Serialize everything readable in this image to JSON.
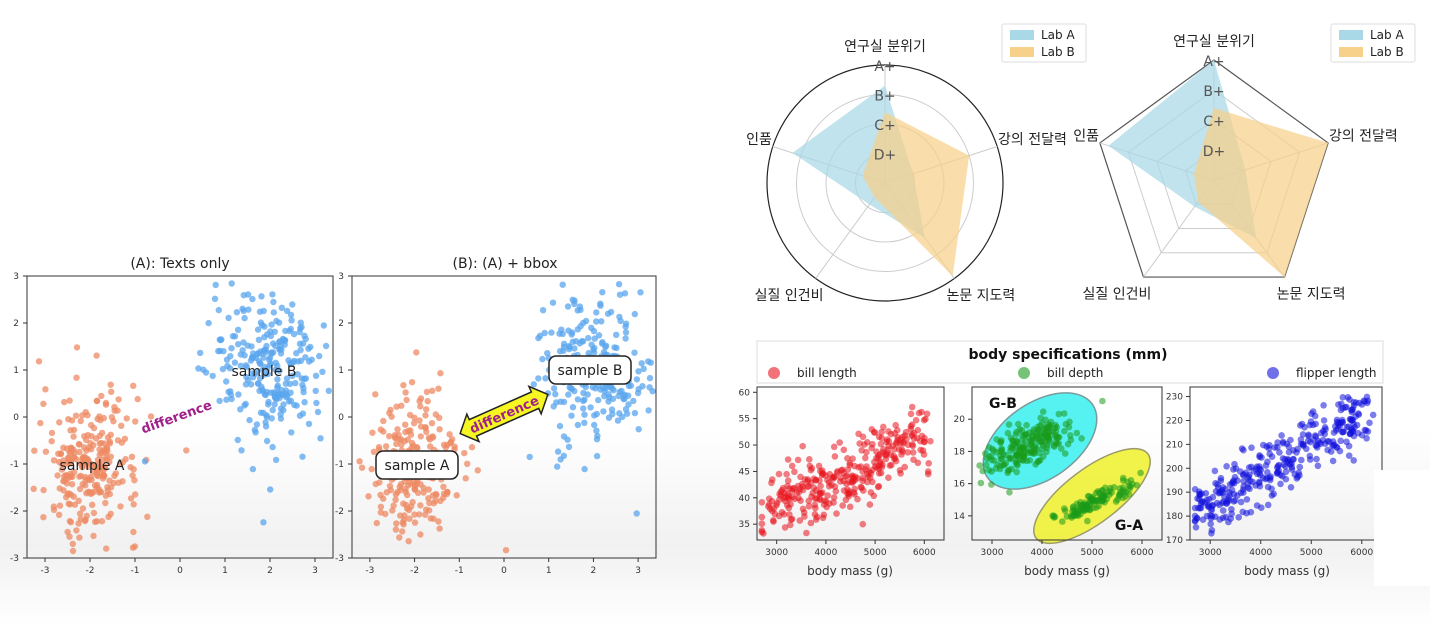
{
  "colors": {
    "sample_a": "#ee8a63",
    "sample_b": "#5aa6ee",
    "lab_a": "#a9d8e6",
    "lab_b": "#f7d08a",
    "bill_length": "#e8141e",
    "bill_depth": "#1a9a1a",
    "flipper_length": "#1010dd",
    "cyan_region": "#38f0f0",
    "yellow_region": "#eef02a",
    "arrow_fill": "#f6f622",
    "difference_text": "#a0208a"
  },
  "chart_data": [
    {
      "type": "scatter",
      "title": "(A): Texts only",
      "xlim": [
        -3.4,
        3.4
      ],
      "ylim": [
        -3,
        3
      ],
      "xticks": [
        "-3",
        "-2",
        "-1",
        "0",
        "1",
        "2",
        "3"
      ],
      "yticks": [
        "3",
        "2",
        "1",
        "0",
        "-1",
        "-2",
        "-3"
      ],
      "series": [
        {
          "name": "",
          "cluster": {
            "center": [
              -2,
              -1
            ],
            "spread": [
              0.55,
              0.75
            ],
            "count": 260
          }
        },
        {
          "name": "",
          "cluster": {
            "center": [
              2,
              1
            ],
            "spread": [
              0.65,
              0.8
            ],
            "count": 260
          }
        }
      ],
      "annotations": [
        "sample A",
        "sample B",
        "difference"
      ]
    },
    {
      "type": "scatter",
      "title": "(B): (A) + bbox",
      "xlim": [
        -3.4,
        3.4
      ],
      "ylim": [
        -3,
        3
      ],
      "xticks": [
        "-3",
        "-2",
        "-1",
        "0",
        "1",
        "2",
        "3"
      ],
      "yticks": [
        "3",
        "2",
        "1",
        "0",
        "-1",
        "-2",
        "-3"
      ],
      "series": [
        {
          "name": "",
          "cluster": {
            "center": [
              -2,
              -1
            ],
            "spread": [
              0.55,
              0.75
            ],
            "count": 260
          }
        },
        {
          "name": "",
          "cluster": {
            "center": [
              2,
              1
            ],
            "spread": [
              0.65,
              0.8
            ],
            "count": 260
          }
        }
      ],
      "annotations": [
        "sample A",
        "sample B",
        "difference"
      ]
    },
    {
      "type": "radar",
      "shape": "circle",
      "categories": [
        "연구실 분위기",
        "강의 전달력",
        "논문 지도력",
        "실질 인건비",
        "인품"
      ],
      "rlabels": [
        "A+",
        "B+",
        "C+",
        "D+"
      ],
      "levels": {
        "D+": 1,
        "C+": 2,
        "B+": 3,
        "A+": 4
      },
      "rmax": 4,
      "series": [
        {
          "name": "Lab A",
          "values": [
            3.3,
            1.0,
            2.3,
            0.9,
            3.3
          ]
        },
        {
          "name": "Lab B",
          "values": [
            2.4,
            3.0,
            3.9,
            0.6,
            0.8
          ]
        }
      ],
      "legend": "top-right"
    },
    {
      "type": "radar",
      "shape": "polygon",
      "categories": [
        "연구실 분위기",
        "강의 전달력",
        "논문 지도력",
        "실질 인건비",
        "인품"
      ],
      "rlabels": [
        "A+",
        "B+",
        "C+",
        "D+"
      ],
      "levels": {
        "D+": 1,
        "C+": 2,
        "B+": 3,
        "A+": 4
      },
      "rmax": 4,
      "series": [
        {
          "name": "Lab A",
          "values": [
            4.0,
            1.1,
            2.4,
            1.1,
            3.7
          ]
        },
        {
          "name": "Lab B",
          "values": [
            2.4,
            4.0,
            4.0,
            0.9,
            0.7
          ]
        }
      ],
      "legend": "top-right"
    },
    {
      "type": "scatter",
      "suptitle": "body specifications (mm)",
      "legend_entries": [
        "bill length",
        "bill depth",
        "flipper length"
      ],
      "xlabel": "body mass (g)",
      "panels": [
        {
          "series": "bill length",
          "xlim": [
            2600,
            6400
          ],
          "ylim": [
            32,
            61
          ],
          "xticks": [
            "3000",
            "4000",
            "5000",
            "6000"
          ],
          "yticks": [
            "60",
            "55",
            "50",
            "45",
            "40",
            "35"
          ],
          "trend": {
            "x": [
              2700,
              6300
            ],
            "y": [
              36,
              53
            ]
          },
          "noise": 3.2,
          "count": 330
        },
        {
          "series": "bill depth",
          "xlim": [
            2600,
            6400
          ],
          "ylim": [
            12.5,
            22
          ],
          "xticks": [
            "3000",
            "4000",
            "5000",
            "6000"
          ],
          "yticks": [
            "20",
            "18",
            "16",
            "14"
          ],
          "groups": [
            {
              "label": "G-B",
              "center": [
                3700,
                18.3
              ],
              "count": 210
            },
            {
              "label": "G-A",
              "center": [
                5050,
                14.9
              ],
              "count": 120
            }
          ]
        },
        {
          "series": "flipper length",
          "xlim": [
            2600,
            6400
          ],
          "ylim": [
            170,
            234
          ],
          "xticks": [
            "3000",
            "4000",
            "5000",
            "6000"
          ],
          "yticks": [
            "230",
            "220",
            "210",
            "200",
            "190",
            "180",
            "170"
          ],
          "trend": {
            "x": [
              2700,
              6300
            ],
            "y": [
              181,
              226
            ]
          },
          "noise": 6.5,
          "count": 340
        }
      ]
    }
  ]
}
